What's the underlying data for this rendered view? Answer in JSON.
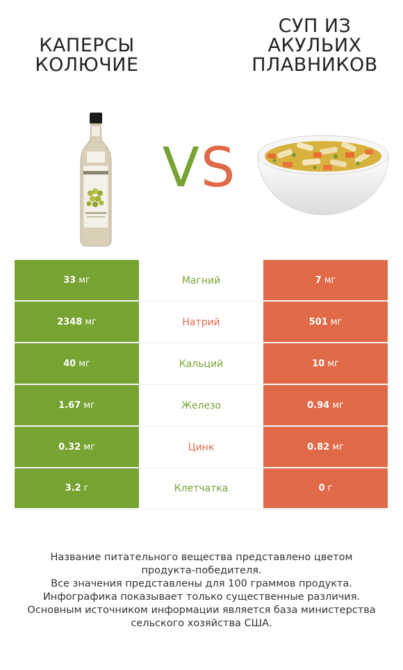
{
  "left_product": {
    "title_line1": "КАПЕРСЫ",
    "title_line2": "КОЛЮЧИЕ",
    "image_icon": "dressing-bottle-icon"
  },
  "right_product": {
    "title_line1": "СУП ИЗ",
    "title_line2": "АКУЛЬИХ",
    "title_line3": "ПЛАВНИКОВ",
    "image_icon": "soup-bowl-icon"
  },
  "vs": {
    "v": "V",
    "s": "S"
  },
  "colors": {
    "left": "#76a332",
    "right": "#e06a48"
  },
  "rows": [
    {
      "nutrient": "Магний",
      "left_num": "33",
      "left_unit": "мг",
      "right_num": "7",
      "right_unit": "мг",
      "winner": "left"
    },
    {
      "nutrient": "Натрий",
      "left_num": "2348",
      "left_unit": "мг",
      "right_num": "501",
      "right_unit": "мг",
      "winner": "right"
    },
    {
      "nutrient": "Кальций",
      "left_num": "40",
      "left_unit": "мг",
      "right_num": "10",
      "right_unit": "мг",
      "winner": "left"
    },
    {
      "nutrient": "Железо",
      "left_num": "1.67",
      "left_unit": "мг",
      "right_num": "0.94",
      "right_unit": "мг",
      "winner": "left"
    },
    {
      "nutrient": "Цинк",
      "left_num": "0.32",
      "left_unit": "мг",
      "right_num": "0.82",
      "right_unit": "мг",
      "winner": "right"
    },
    {
      "nutrient": "Клетчатка",
      "left_num": "3.2",
      "left_unit": "г",
      "right_num": "0",
      "right_unit": "г",
      "winner": "left"
    }
  ],
  "footnote": {
    "line1": "Название питательного вещества представлено цветом",
    "line2": "продукта-победителя.",
    "line3": "Все значения представлены для 100 граммов продукта.",
    "line4": "Инфографика показывает только существенные различия.",
    "line5": "Основным источником информации является база министерства",
    "line6": "сельского хозяйства США."
  }
}
